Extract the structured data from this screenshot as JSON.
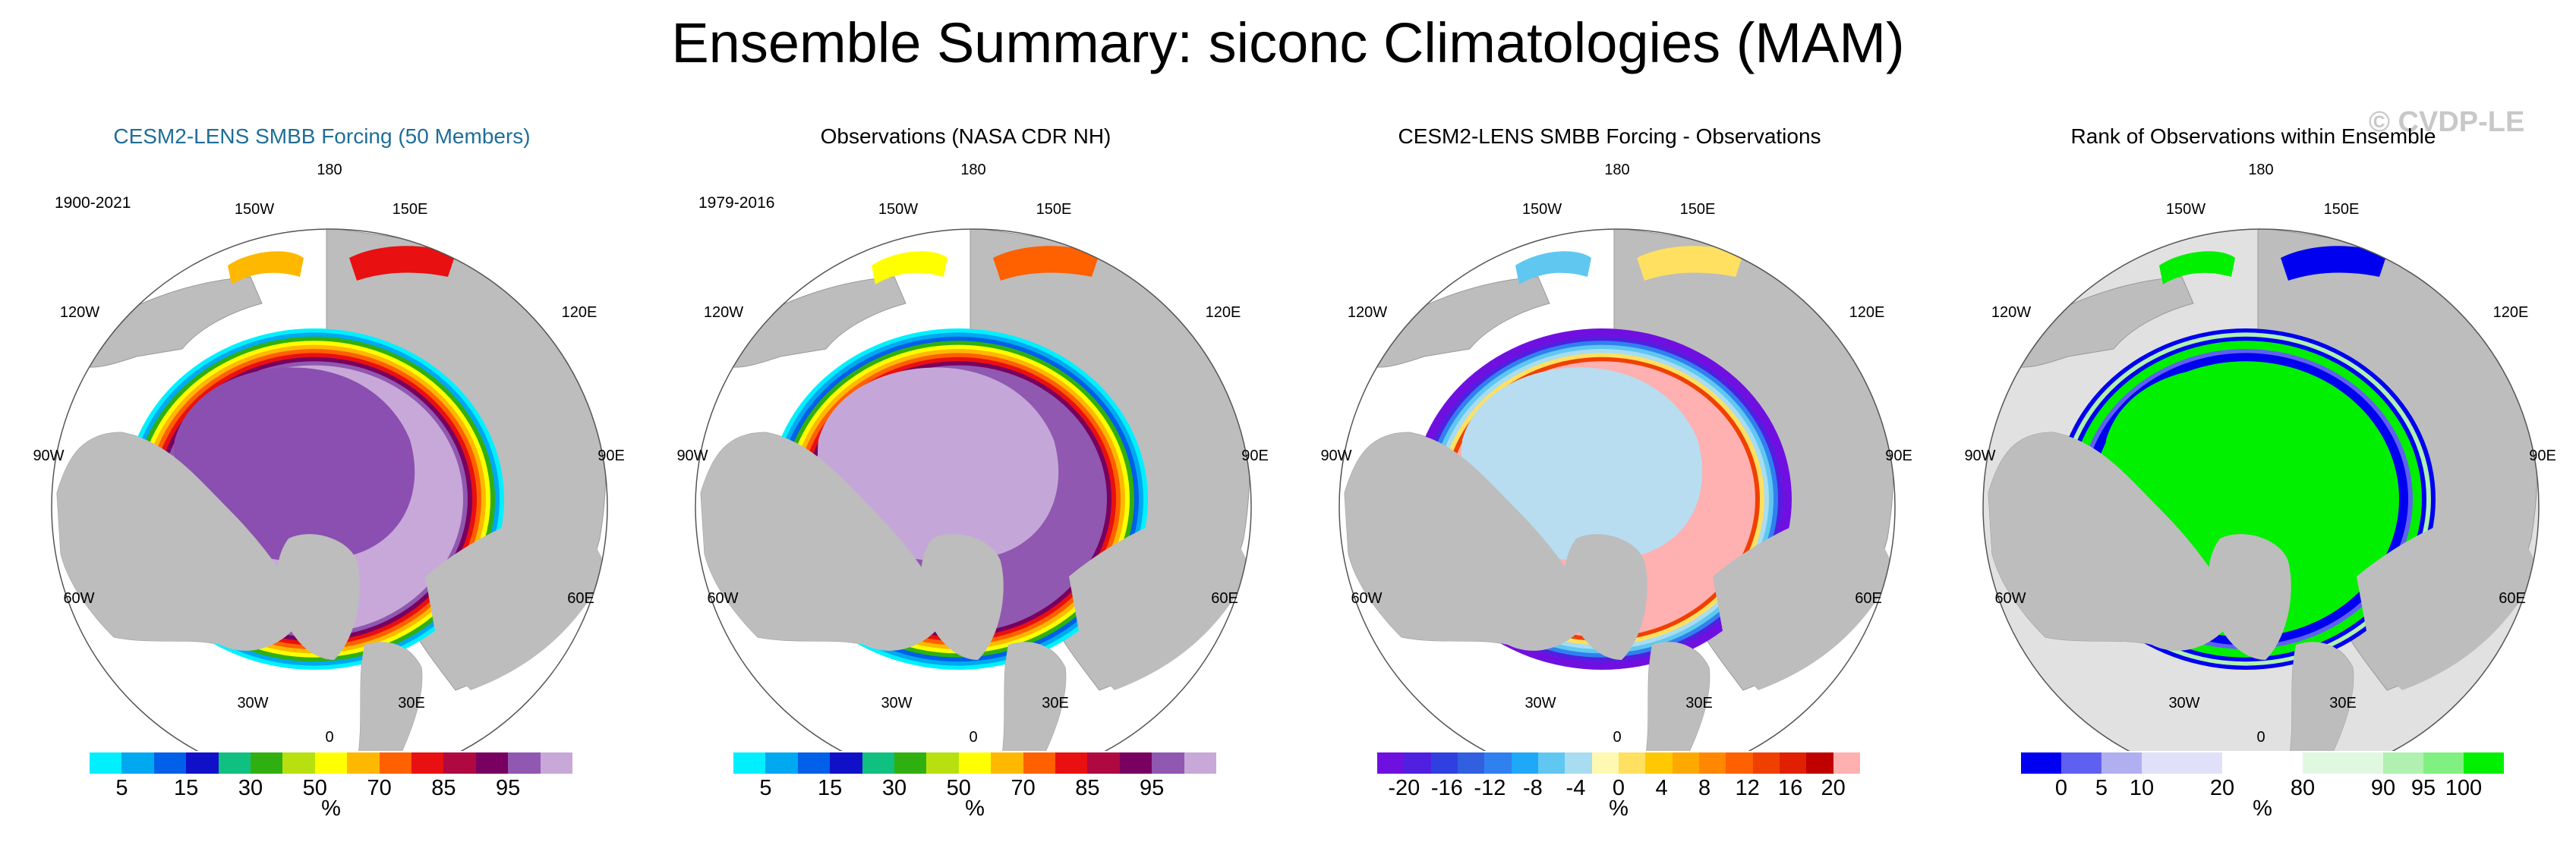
{
  "title": "Ensemble Summary: siconc Climatologies (MAM)",
  "watermark": "© CVDP-LE",
  "longitude_labels": [
    "180",
    "150W",
    "150E",
    "120W",
    "120E",
    "90W",
    "90E",
    "60W",
    "60E",
    "30W",
    "30E",
    "0"
  ],
  "colors": {
    "land": "#bdbdbd",
    "ocean": "#ffffff",
    "panel1_title": "#1f6e98",
    "rank_bg": "#e1e1e1"
  },
  "panels": [
    {
      "title": "CESM2-LENS SMBB Forcing (50 Members)",
      "period": "1900-2021",
      "units": "%",
      "colorbar": {
        "colors": [
          "#00f0ff",
          "#00a8f0",
          "#0060e8",
          "#1010c8",
          "#10c080",
          "#30b010",
          "#b8e010",
          "#ffff00",
          "#ffb800",
          "#ff6000",
          "#e81010",
          "#b00840",
          "#780060",
          "#9058b0",
          "#c8a8d8"
        ],
        "labels": [
          "5",
          "15",
          "30",
          "50",
          "70",
          "85",
          "95"
        ]
      }
    },
    {
      "title": "Observations (NASA CDR NH)",
      "period": "1979-2016",
      "units": "%",
      "colorbar": {
        "colors": [
          "#00f0ff",
          "#00a8f0",
          "#0060e8",
          "#1010c8",
          "#10c080",
          "#30b010",
          "#b8e010",
          "#ffff00",
          "#ffb800",
          "#ff6000",
          "#e81010",
          "#b00840",
          "#780060",
          "#9058b0",
          "#c8a8d8"
        ],
        "labels": [
          "5",
          "15",
          "30",
          "50",
          "70",
          "85",
          "95"
        ]
      }
    },
    {
      "title": "CESM2-LENS SMBB Forcing - Observations",
      "units": "%",
      "colorbar": {
        "colors": [
          "#7010e0",
          "#5020e0",
          "#3040e0",
          "#3060e0",
          "#3080f0",
          "#20a8f8",
          "#60c8f0",
          "#a8dcf0",
          "#fff8b0",
          "#ffe060",
          "#ffc800",
          "#ffa800",
          "#ff8800",
          "#ff6000",
          "#f04000",
          "#e02000",
          "#c00000",
          "#ffb0b0"
        ],
        "labels": [
          "-20",
          "-16",
          "-12",
          "-8",
          "-4",
          "0",
          "4",
          "8",
          "12",
          "16",
          "20"
        ]
      }
    },
    {
      "title": "Rank of Observations within Ensemble",
      "units": "%",
      "colorbar": {
        "colors": [
          "#0000f0",
          "#6060f0",
          "#b0b0f0",
          "#e0e0f8",
          "#e0e0f8",
          "#ffffff",
          "#ffffff",
          "#e0f8e0",
          "#e0f8e0",
          "#b0f0b0",
          "#80f080",
          "#00f000"
        ],
        "labels": [
          "0",
          "5",
          "10",
          "20",
          "80",
          "90",
          "95",
          "100"
        ]
      }
    }
  ]
}
